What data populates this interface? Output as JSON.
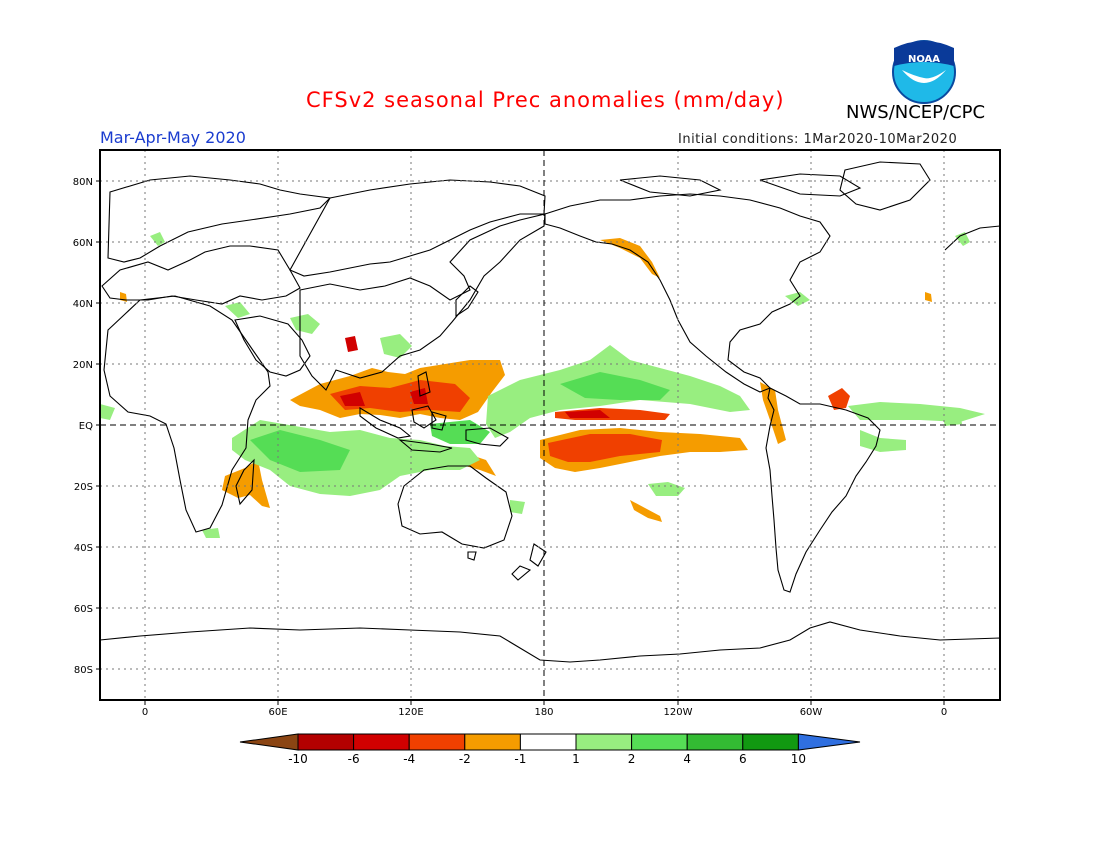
{
  "header": {
    "title": "CFSv2 seasonal Prec anomalies (mm/day)",
    "agency": "NWS/NCEP/CPC",
    "season": "Mar-Apr-May 2020",
    "initial_conditions": "Initial conditions: 1Mar2020-10Mar2020",
    "logo_text": "NOAA"
  },
  "map": {
    "lat_labels": [
      "80N",
      "60N",
      "40N",
      "20N",
      "EQ",
      "20S",
      "40S",
      "60S",
      "80S"
    ],
    "lon_labels": [
      "0",
      "60E",
      "120E",
      "180",
      "120W",
      "60W",
      "0"
    ]
  },
  "legend": {
    "labels": [
      "-10",
      "-6",
      "-4",
      "-2",
      "-1",
      "1",
      "2",
      "4",
      "6",
      "10"
    ],
    "colors": [
      "#8b4513",
      "#b30000",
      "#d10000",
      "#f04000",
      "#f59c00",
      "#ffffff",
      "#98ee80",
      "#55dd55",
      "#33bb33",
      "#119911",
      "#2f6fe0"
    ]
  }
}
